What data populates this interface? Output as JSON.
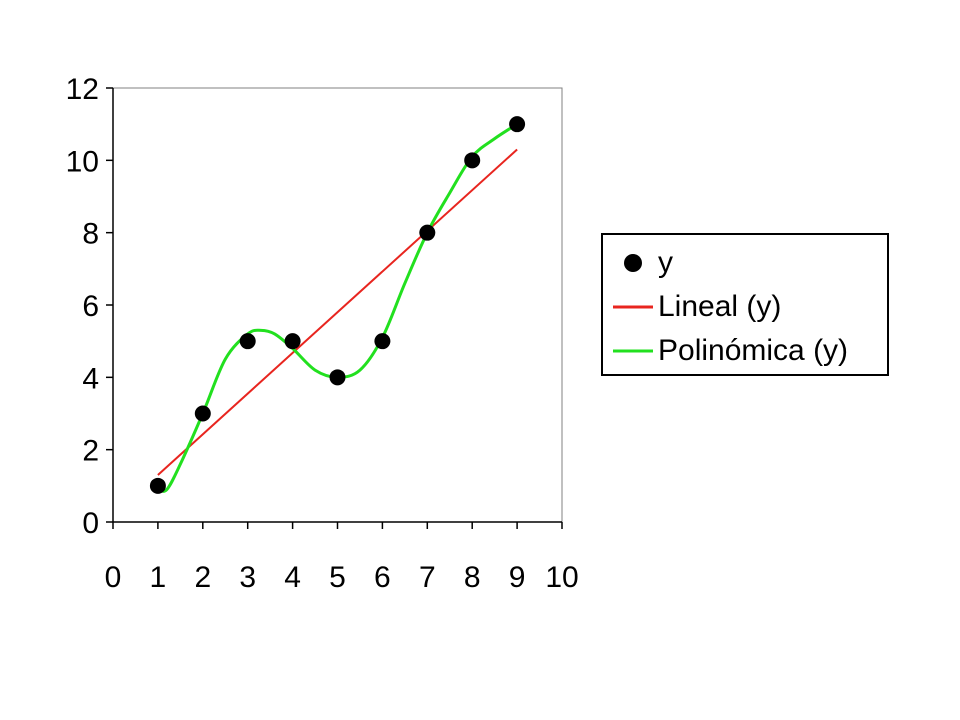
{
  "chart_data": {
    "type": "scatter",
    "title": "",
    "xlabel": "",
    "ylabel": "",
    "xlim": [
      0,
      10
    ],
    "ylim": [
      0,
      12
    ],
    "xticks": [
      0,
      1,
      2,
      3,
      4,
      5,
      6,
      7,
      8,
      9,
      10
    ],
    "yticks": [
      0,
      2,
      4,
      6,
      8,
      10,
      12
    ],
    "grid": false,
    "legend_position": "right",
    "series": [
      {
        "name": "y",
        "kind": "points",
        "color": "#000000",
        "x": [
          1,
          2,
          3,
          4,
          5,
          6,
          7,
          8,
          9
        ],
        "y": [
          1,
          3,
          5,
          5,
          4,
          5,
          8,
          10,
          11
        ]
      },
      {
        "name": "Lineal (y)",
        "kind": "trendline-linear",
        "color": "#e8251f",
        "x": [
          1,
          9
        ],
        "y": [
          1.3,
          10.3
        ]
      },
      {
        "name": "Polinómica (y)",
        "kind": "trendline-polynomial",
        "color": "#22e01f",
        "x": [
          1,
          1.2,
          1.5,
          2,
          2.5,
          3,
          3.3,
          3.6,
          4,
          4.5,
          5,
          5.5,
          6,
          6.5,
          7,
          7.5,
          8,
          8.5,
          9
        ],
        "y": [
          0.9,
          0.9,
          1.6,
          3.0,
          4.5,
          5.2,
          5.3,
          5.2,
          4.8,
          4.2,
          4.0,
          4.2,
          5.1,
          6.6,
          8.0,
          9.1,
          10.1,
          10.6,
          11.0
        ]
      }
    ]
  }
}
